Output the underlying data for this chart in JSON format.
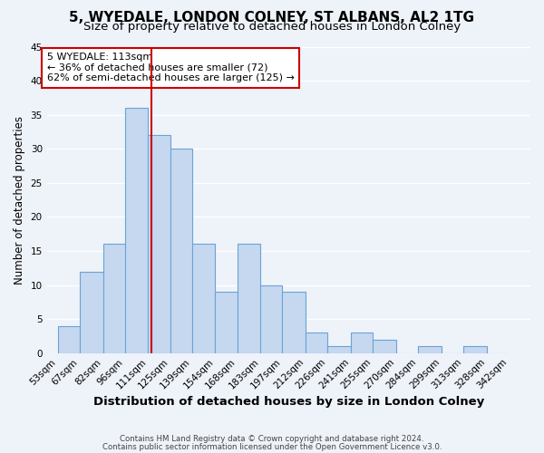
{
  "title1": "5, WYEDALE, LONDON COLNEY, ST ALBANS, AL2 1TG",
  "title2": "Size of property relative to detached houses in London Colney",
  "xlabel": "Distribution of detached houses by size in London Colney",
  "ylabel": "Number of detached properties",
  "bar_left_edges": [
    53,
    67,
    82,
    96,
    111,
    125,
    139,
    154,
    168,
    183,
    197,
    212,
    226,
    241,
    255,
    270,
    284,
    299,
    313,
    328
  ],
  "bar_widths": [
    14,
    15,
    14,
    15,
    14,
    14,
    15,
    14,
    15,
    14,
    15,
    14,
    15,
    14,
    15,
    14,
    15,
    14,
    15,
    14
  ],
  "bar_heights": [
    4,
    12,
    16,
    36,
    32,
    30,
    16,
    9,
    16,
    10,
    9,
    3,
    1,
    3,
    2,
    0,
    1,
    0,
    1,
    0
  ],
  "x_tick_labels": [
    "53sqm",
    "67sqm",
    "82sqm",
    "96sqm",
    "111sqm",
    "125sqm",
    "139sqm",
    "154sqm",
    "168sqm",
    "183sqm",
    "197sqm",
    "212sqm",
    "226sqm",
    "241sqm",
    "255sqm",
    "270sqm",
    "284sqm",
    "299sqm",
    "313sqm",
    "328sqm",
    "342sqm"
  ],
  "x_tick_positions": [
    53,
    67,
    82,
    96,
    111,
    125,
    139,
    154,
    168,
    183,
    197,
    212,
    226,
    241,
    255,
    270,
    284,
    299,
    313,
    328,
    342
  ],
  "ylim": [
    0,
    45
  ],
  "xlim": [
    46,
    356
  ],
  "bar_color": "#c5d8f0",
  "bar_edge_color": "#6aa3d5",
  "marker_x": 113,
  "marker_color": "#cc0000",
  "annotation_title": "5 WYEDALE: 113sqm",
  "annotation_line1": "← 36% of detached houses are smaller (72)",
  "annotation_line2": "62% of semi-detached houses are larger (125) →",
  "annotation_box_color": "#ffffff",
  "annotation_box_edge": "#cc0000",
  "footer1": "Contains HM Land Registry data © Crown copyright and database right 2024.",
  "footer2": "Contains public sector information licensed under the Open Government Licence v3.0.",
  "background_color": "#eef2f9",
  "grid_color": "#ffffff",
  "title_fontsize": 11,
  "subtitle_fontsize": 9.5,
  "tick_fontsize": 7.5,
  "ylabel_fontsize": 8.5,
  "xlabel_fontsize": 9.5
}
